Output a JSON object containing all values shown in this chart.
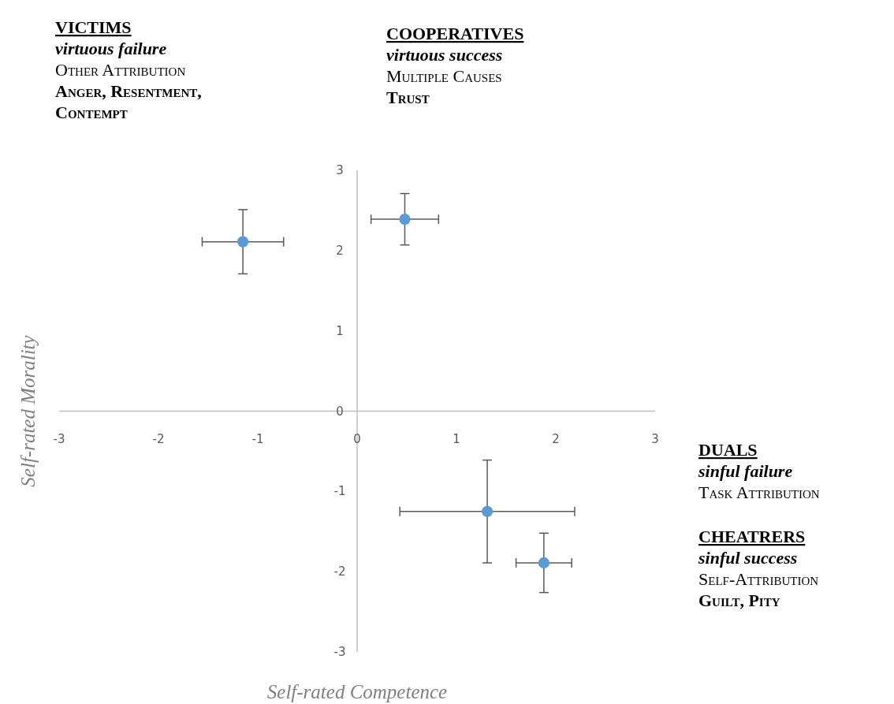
{
  "chart_data": {
    "type": "scatter",
    "xlabel": "Self-rated Competence",
    "ylabel": "Self-rated Morality",
    "x": [
      -1.15,
      0.48,
      1.31,
      1.88
    ],
    "values": [
      2.11,
      2.39,
      -1.25,
      -1.89
    ],
    "errors": [
      0.4,
      0.32,
      0.64,
      0.37
    ],
    "xerrors": [
      0.41,
      0.34,
      0.88,
      0.28
    ],
    "color": "#5b9bd5",
    "marker": "circle",
    "grid": false,
    "xlim": [
      -3,
      3
    ],
    "xticks": [
      -3,
      -2,
      -1,
      0,
      1,
      2,
      3
    ],
    "ylim": [
      -3,
      3
    ],
    "yticks": [
      -3,
      -2,
      -1,
      0,
      1,
      2,
      3
    ],
    "annotations": [
      "VICTIMS\nvirtuous failure\nOther Attribution\nAnger, Resentment,\nContempt",
      "COOPERATIVES\nvirtuous success\nMultiple Causes\nTrust",
      "DUALS\nsinful failure\nTask Attribution",
      "CHEATRERS\nsinful success\nSelf-Attribution\nGuilt, Pity"
    ]
  }
}
